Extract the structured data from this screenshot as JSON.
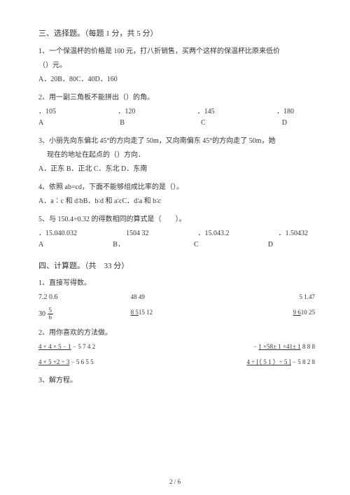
{
  "section3": {
    "title": "三、选择题。（每题 1 分，共 5 分）",
    "q1": {
      "text": "1、一个保温杯的价格是 100 元，打八折销售，买两个这样的保温杯比原来低价",
      "text2": "（）元。",
      "choices": "A．20B．80C．40D．160"
    },
    "q2": {
      "text": "2、用一副三角板不能拼出（）的角。",
      "row_vals": {
        "a": "．105",
        "b": "．120",
        "c": "．145",
        "d": "．180"
      },
      "row_lbls": {
        "a": "A",
        "b": "B",
        "c": "C",
        "d": "D"
      }
    },
    "q3": {
      "text1": "3、小丽先向东偏北 45°的方向走了 50m，又向南偏东 45°的方向走了 50m，她",
      "text2": "现在的地址在起点的（）方向．",
      "choices": "A．正东 B．正北 C．东北 D．东南"
    },
    "q4": {
      "text": "4、依照 ab=cd，下面不能够组成比率的是（）。",
      "choices": "A．a∶c 和 d∶bB．b∶d 和 a∶cC．d∶a 和 b∶c"
    },
    "q5": {
      "text": "5、与 150.4÷0.32  的得数相同的算式是（　　）。",
      "row_vals": {
        "a": "．15.040.032",
        "b": "1504  32",
        "c": "．15.043.2",
        "d": "．1.50432"
      },
      "row_lbls": {
        "a": "A",
        "b": "B．",
        "c": "C",
        "d": "D"
      }
    }
  },
  "section4": {
    "title": "四、计算题。（共　33 分）",
    "q1": {
      "text": "1、直接写得数。",
      "r1": {
        "a": "7.2  0.6",
        "b_top": "48 4",
        "b_bot": "9",
        "c_top": "5   1.4",
        "c_bot": "7"
      },
      "r2": {
        "a_main": "30",
        "a_frac_n": "5",
        "a_frac_d": "6",
        "b_top": "   8     5",
        "b_bot": "15  12",
        "c_top": "   9     6",
        "c_bot": "10   25"
      }
    },
    "q2": {
      "text": "2、用你喜欢的方法做。",
      "left1_top": " 4 × 4 × 5 − 1",
      "left1_bot": "5    7  4    2",
      "right1_top": "   1 ×58± 1 ×41± 1",
      "right1_bot": "8        8        8",
      "left2_top": " 4 × 5 +2 ÷ 3",
      "left2_bot": "5    6  5    5",
      "right2_top": " 4 ÷ [（ 5   1 ）÷ 5 ]",
      "right2_bot": "5       8   2     8",
      "dash": "−",
      "dash2": "−"
    },
    "q3": {
      "text": "3、解方程。"
    }
  },
  "pagenum": "2 / 6"
}
